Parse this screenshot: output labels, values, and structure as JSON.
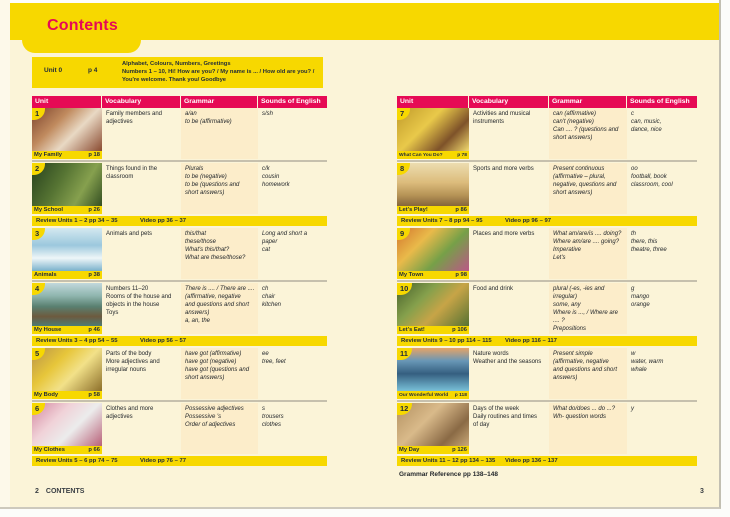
{
  "page": {
    "title": "Contents",
    "footer_left_number": "2",
    "footer_left_label": "CONTENTS",
    "footer_right_number": "3",
    "grammar_reference": "Grammar Reference pp 138–148"
  },
  "colors": {
    "yellow": "#f7d800",
    "magenta": "#e60a55",
    "navy": "#1f2a38",
    "cream": "#fbf4d8",
    "grammar_stripe": "#fcedca"
  },
  "unit0": {
    "label": "Unit 0",
    "page": "p 4",
    "text": "Alphabet, Colours, Numbers, Greetings\nNumbers 1 – 10, Hi! How are you? / My name is ... / How old are you? /\nYou're welcome. Thank you/ Goodbye"
  },
  "columns": {
    "unit": "Unit",
    "vocabulary": "Vocabulary",
    "grammar": "Grammar",
    "sounds": "Sounds of English"
  },
  "left_units": [
    {
      "number": "1",
      "title": "My Family",
      "page": "p 18",
      "photo": "family-on-veranda",
      "vocabulary": "Family members and\nadjectives",
      "grammar": "a/an\nto be (affirmative)",
      "sounds": "s/sh"
    },
    {
      "number": "2",
      "title": "My School",
      "page": "p 26",
      "photo": "children-outdoors",
      "vocabulary": "Things found in the\nclassroom",
      "grammar": "Plurals\nto be (negative)\nto be (questions and\nshort answers)",
      "sounds": "c/k\ncousin\nhomework"
    },
    {
      "number": "3",
      "title": "Animals",
      "page": "p 38",
      "photo": "penguins-on-ice",
      "vocabulary": "Animals and pets",
      "grammar": "this/that\nthese/those\nWhat's this/that?\nWhat are these/those?",
      "sounds": "Long and short a\npaper\ncat"
    },
    {
      "number": "4",
      "title": "My House",
      "page": "p 46",
      "photo": "house-on-river-rock",
      "vocabulary": "Numbers 11–20\nRooms of the house and\nobjects in the house\nToys",
      "grammar": "There is .... / There are ....\n(affirmative, negative\nand questions and short\nanswers)\na, an, the",
      "sounds": "ch\nchair\nkitchen"
    },
    {
      "number": "5",
      "title": "My Body",
      "page": "p 58",
      "photo": "yellow-art-structure",
      "vocabulary": "Parts of the body\nMore adjectives and\nirregular nouns",
      "grammar": "have got (affirmative)\nhave got (negative)\nhave got (questions and\nshort answers)",
      "sounds": "ee\ntree, feet"
    },
    {
      "number": "6",
      "title": "My Clothes",
      "page": "p 66",
      "photo": "colourful-clothes",
      "vocabulary": "Clothes and more\nadjectives",
      "grammar": "Possessive adjectives\nPossessive 's\nOrder of adjectives",
      "sounds": "s\ntrousers\nclothes"
    }
  ],
  "right_units": [
    {
      "number": "7",
      "title": "What Can You Do?",
      "page": "p 78",
      "photo": "children-brass-band",
      "vocabulary": "Activities and musical\ninstruments",
      "grammar": "can (affirmative)\ncan't (negative)\nCan .... ? (questions and\nshort answers)",
      "sounds": "c\ncan, music,\ndance, nice"
    },
    {
      "number": "8",
      "title": "Let's Play!",
      "page": "p 86",
      "photo": "beach-cricket-sunset",
      "vocabulary": "Sports and more verbs",
      "grammar": "Present continuous\n(affirmative – plural,\nnegative, questions and\nshort answers)",
      "sounds": "oo\nfootball, book\nclassroom, cool"
    },
    {
      "number": "9",
      "title": "My Town",
      "page": "p 98",
      "photo": "street-carnival-costumes",
      "vocabulary": "Places and more verbs",
      "grammar": "What am/are/is .... doing?\nWhere am/are .... going?\nImperative\nLet's",
      "sounds": "th\nthere, this\ntheatre, three"
    },
    {
      "number": "10",
      "title": "Let's Eat!",
      "page": "p 106",
      "photo": "market-stall-overhead",
      "vocabulary": "Food and drink",
      "grammar": "plural (-es, -ies and\nirregular)\nsome, any\nWhere is ..., / Where are .... ?\nPrepositions",
      "sounds": "g\nmango\norange"
    },
    {
      "number": "11",
      "title": "Our Wonderful World",
      "page": "p 118",
      "photo": "frozen-lake",
      "vocabulary": "Nature words\nWeather and the seasons",
      "grammar": "Present simple\n(affirmative, negative\nand questions and short\nanswers)",
      "sounds": "w\nwater, warm\nwhale"
    },
    {
      "number": "12",
      "title": "My Day",
      "page": "p 126",
      "photo": "kangaroos",
      "vocabulary": "Days of the week\nDaily routines and times\nof day",
      "grammar": "What do/does ... do ...?\nWh- question words",
      "sounds": "y"
    }
  ],
  "reviews": {
    "r12": {
      "label": "Review Units 1 – 2 pp 34 – 35",
      "video": "Video pp 36 – 37"
    },
    "r34": {
      "label": "Review Units 3 – 4 pp 54 – 55",
      "video": "Video pp 56 – 57"
    },
    "r56": {
      "label": "Review Units 5 – 6 pp 74 – 75",
      "video": "Video pp 76 – 77"
    },
    "r78": {
      "label": "Review Units 7 – 8 pp 94 – 95",
      "video": "Video pp 96 – 97"
    },
    "r910": {
      "label": "Review Units 9 – 10 pp 114 – 115",
      "video": "Video pp 116 – 117"
    },
    "r1112": {
      "label": "Review Units 11 – 12 pp 134 – 135",
      "video": "Video pp 136 – 137"
    }
  }
}
